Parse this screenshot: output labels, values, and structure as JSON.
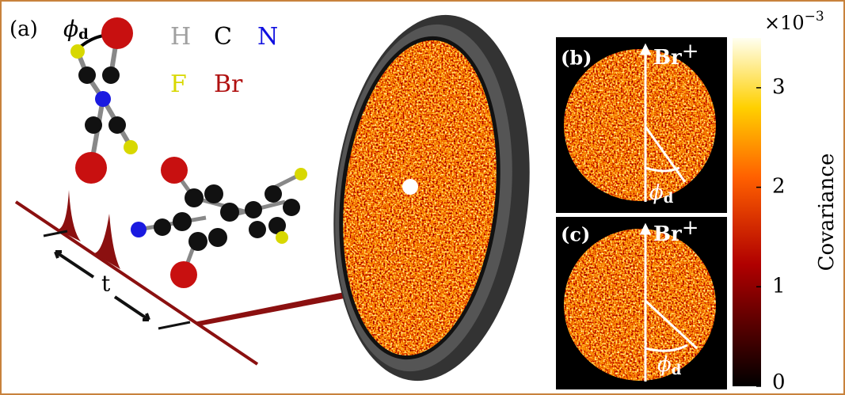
{
  "panel_a": {
    "label": "(a)",
    "phi_symbol": "ϕ",
    "phi_subscript": "d",
    "time_label": "t",
    "elements": [
      {
        "symbol": "H",
        "color": "#a0a0a0"
      },
      {
        "symbol": "C",
        "color": "#000000"
      },
      {
        "symbol": "N",
        "color": "#1010e0"
      },
      {
        "symbol": "F",
        "color": "#d8d800"
      },
      {
        "symbol": "Br",
        "color": "#b01010"
      }
    ]
  },
  "panel_b": {
    "label": "(b)",
    "ion": "Br",
    "ion_charge": "+",
    "phi_symbol": "ϕ",
    "phi_subscript": "d"
  },
  "panel_c": {
    "label": "(c)",
    "ion": "Br",
    "ion_charge": "+",
    "phi_symbol": "ϕ",
    "phi_subscript": "d"
  },
  "colorbar": {
    "label": "Covariance",
    "multiplier_base": "×10",
    "multiplier_exponent": "−3",
    "lim": [
      0,
      3.5
    ],
    "ticks": [
      0,
      1,
      2,
      3
    ]
  }
}
